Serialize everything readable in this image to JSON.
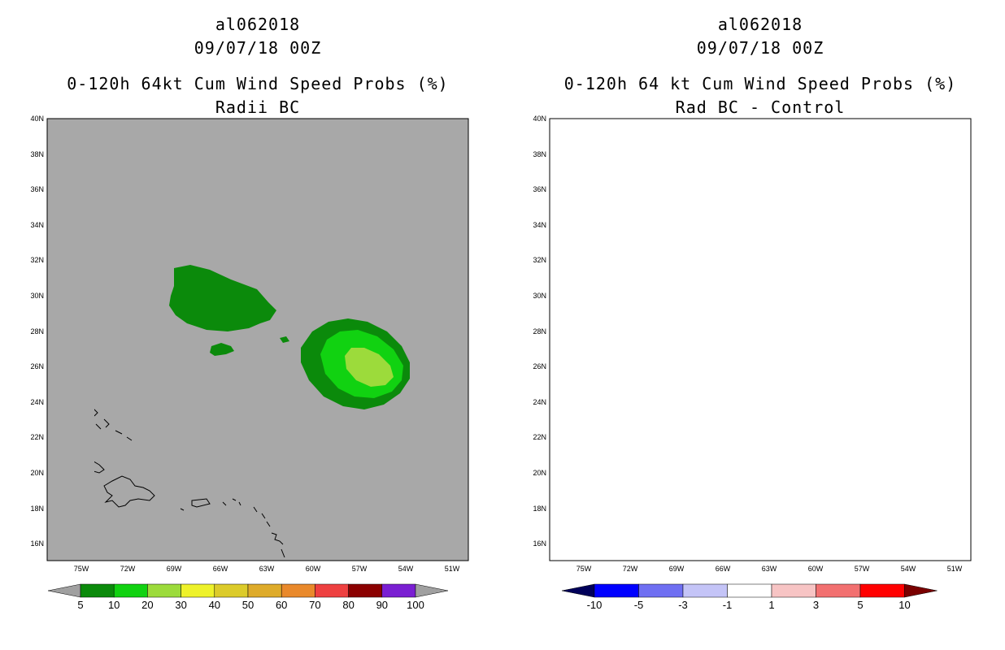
{
  "left": {
    "title1": "al062018",
    "title2": "09/07/18 00Z",
    "title3": "0-120h 64kt Cum Wind Speed Probs (%)",
    "title4": "Radii BC",
    "colorbar": {
      "labels": [
        "5",
        "10",
        "20",
        "30",
        "40",
        "50",
        "60",
        "70",
        "80",
        "90",
        "100"
      ],
      "colors": [
        "#a0a0a0",
        "#0b8a0b",
        "#11d211",
        "#9cdb3b",
        "#eef22a",
        "#dccb2a",
        "#deab2a",
        "#e9892b",
        "#ee4040",
        "#8b0000",
        "#7a1fd2",
        "#a0a0a0"
      ]
    }
  },
  "right": {
    "title1": "al062018",
    "title2": "09/07/18 00Z",
    "title3": "0-120h 64 kt Cum Wind Speed Probs (%)",
    "title4": "Rad BC - Control",
    "colorbar": {
      "labels": [
        "-10",
        "-5",
        "-3",
        "-1",
        "1",
        "3",
        "5",
        "10"
      ],
      "colors": [
        "#00005a",
        "#0000ff",
        "#6f6ff2",
        "#c4c4f7",
        "#ffffff",
        "#f7c4c4",
        "#f27070",
        "#ff0000",
        "#7a0000"
      ]
    }
  },
  "axes": {
    "lat_labels": [
      "40N",
      "38N",
      "36N",
      "34N",
      "32N",
      "30N",
      "28N",
      "26N",
      "24N",
      "22N",
      "20N",
      "18N",
      "16N"
    ],
    "lon_labels": [
      "75W",
      "72W",
      "69W",
      "66W",
      "63W",
      "60W",
      "57W",
      "54W",
      "51W"
    ]
  },
  "colors": {
    "left_background": "#a8a8a8",
    "coast": "#000000",
    "grid": "#9a9a9a"
  }
}
